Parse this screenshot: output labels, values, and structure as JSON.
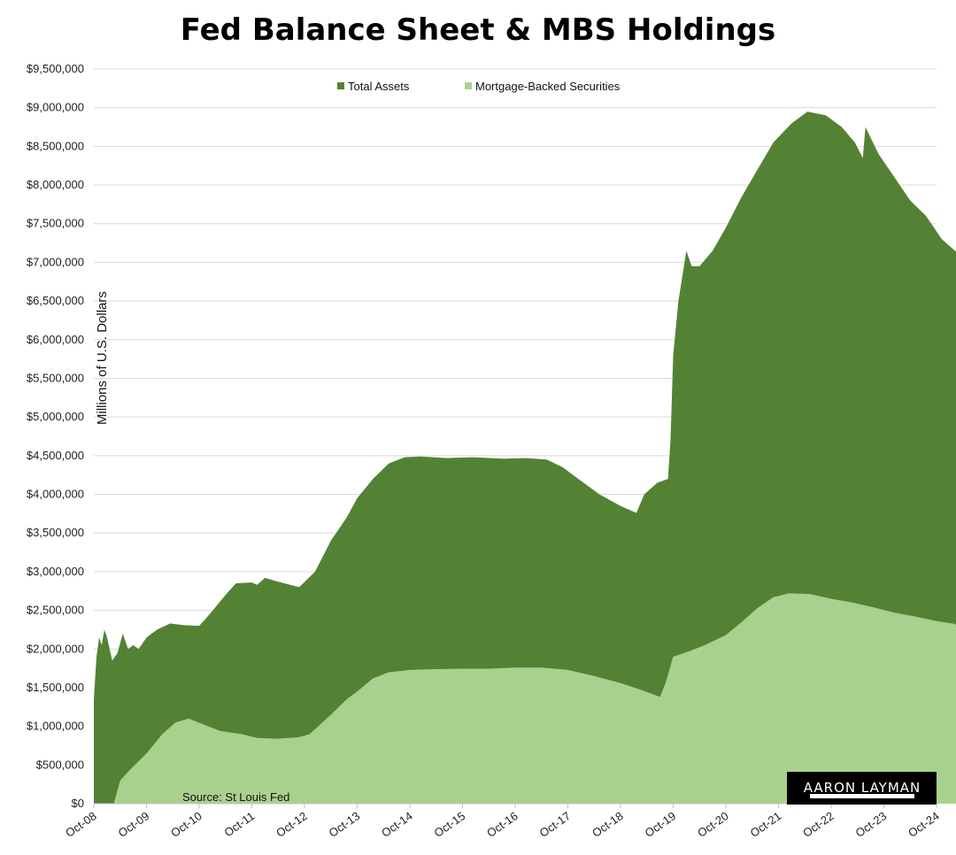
{
  "chart_data": {
    "type": "area",
    "title": "Fed Balance Sheet & MBS Holdings",
    "ylabel": "Millions of U.S. Dollars",
    "xlabel": "",
    "ylim": [
      0,
      9500000
    ],
    "ytick_step": 500000,
    "yticks": [
      "$0",
      "$500,000",
      "$1,000,000",
      "$1,500,000",
      "$2,000,000",
      "$2,500,000",
      "$3,000,000",
      "$3,500,000",
      "$4,000,000",
      "$4,500,000",
      "$5,000,000",
      "$5,500,000",
      "$6,000,000",
      "$6,500,000",
      "$7,000,000",
      "$7,500,000",
      "$8,000,000",
      "$8,500,000",
      "$9,000,000",
      "$9,500,000"
    ],
    "xticks": [
      "Oct-08",
      "Oct-09",
      "Oct-10",
      "Oct-11",
      "Oct-12",
      "Oct-13",
      "Oct-14",
      "Oct-15",
      "Oct-16",
      "Oct-17",
      "Oct-18",
      "Oct-19",
      "Oct-20",
      "Oct-21",
      "Oct-22",
      "Oct-23",
      "Oct-24"
    ],
    "grid": true,
    "legend_position": "top",
    "annotation": "Source: St Louis Fed",
    "watermark": "AARON LAYMAN",
    "x_unit": "years since Oct-08",
    "series": [
      {
        "name": "Total Assets",
        "color": "#548235",
        "points": [
          [
            0,
            1350000
          ],
          [
            0.05,
            1900000
          ],
          [
            0.1,
            2150000
          ],
          [
            0.15,
            2050000
          ],
          [
            0.2,
            2250000
          ],
          [
            0.25,
            2150000
          ],
          [
            0.35,
            1850000
          ],
          [
            0.45,
            1950000
          ],
          [
            0.55,
            2200000
          ],
          [
            0.65,
            2000000
          ],
          [
            0.75,
            2050000
          ],
          [
            0.85,
            2000000
          ],
          [
            1.0,
            2150000
          ],
          [
            1.2,
            2250000
          ],
          [
            1.45,
            2330000
          ],
          [
            1.7,
            2310000
          ],
          [
            2.0,
            2300000
          ],
          [
            2.2,
            2450000
          ],
          [
            2.5,
            2700000
          ],
          [
            2.7,
            2850000
          ],
          [
            3.0,
            2860000
          ],
          [
            3.1,
            2830000
          ],
          [
            3.25,
            2920000
          ],
          [
            3.5,
            2870000
          ],
          [
            3.9,
            2800000
          ],
          [
            4.2,
            3000000
          ],
          [
            4.5,
            3400000
          ],
          [
            4.8,
            3700000
          ],
          [
            5.0,
            3950000
          ],
          [
            5.3,
            4200000
          ],
          [
            5.6,
            4400000
          ],
          [
            5.9,
            4480000
          ],
          [
            6.2,
            4490000
          ],
          [
            6.7,
            4470000
          ],
          [
            7.2,
            4480000
          ],
          [
            7.8,
            4460000
          ],
          [
            8.2,
            4470000
          ],
          [
            8.6,
            4450000
          ],
          [
            8.9,
            4350000
          ],
          [
            9.2,
            4200000
          ],
          [
            9.6,
            4000000
          ],
          [
            10.0,
            3850000
          ],
          [
            10.3,
            3760000
          ],
          [
            10.45,
            4000000
          ],
          [
            10.7,
            4150000
          ],
          [
            10.9,
            4200000
          ],
          [
            10.95,
            4700000
          ],
          [
            11.0,
            5800000
          ],
          [
            11.1,
            6500000
          ],
          [
            11.25,
            7150000
          ],
          [
            11.35,
            6950000
          ],
          [
            11.5,
            6950000
          ],
          [
            11.75,
            7150000
          ],
          [
            12.0,
            7450000
          ],
          [
            12.3,
            7850000
          ],
          [
            12.6,
            8200000
          ],
          [
            12.9,
            8550000
          ],
          [
            13.25,
            8800000
          ],
          [
            13.55,
            8950000
          ],
          [
            13.9,
            8900000
          ],
          [
            14.2,
            8750000
          ],
          [
            14.45,
            8550000
          ],
          [
            14.6,
            8350000
          ],
          [
            14.65,
            8750000
          ],
          [
            14.9,
            8400000
          ],
          [
            15.2,
            8100000
          ],
          [
            15.5,
            7800000
          ],
          [
            15.8,
            7600000
          ],
          [
            16.1,
            7300000
          ],
          [
            16.35,
            7150000
          ],
          [
            16.5,
            7100000
          ]
        ]
      },
      {
        "name": "Mortgage-Backed Securities",
        "color": "#a9d18e",
        "points": [
          [
            0,
            0
          ],
          [
            0.38,
            0
          ],
          [
            0.5,
            300000
          ],
          [
            0.7,
            450000
          ],
          [
            1.0,
            650000
          ],
          [
            1.3,
            900000
          ],
          [
            1.55,
            1050000
          ],
          [
            1.8,
            1100000
          ],
          [
            2.1,
            1020000
          ],
          [
            2.4,
            940000
          ],
          [
            2.8,
            900000
          ],
          [
            3.1,
            850000
          ],
          [
            3.5,
            840000
          ],
          [
            3.9,
            860000
          ],
          [
            4.1,
            900000
          ],
          [
            4.5,
            1150000
          ],
          [
            4.8,
            1350000
          ],
          [
            5.0,
            1450000
          ],
          [
            5.3,
            1620000
          ],
          [
            5.6,
            1700000
          ],
          [
            6.0,
            1730000
          ],
          [
            6.5,
            1740000
          ],
          [
            7.0,
            1745000
          ],
          [
            7.5,
            1745000
          ],
          [
            8.0,
            1760000
          ],
          [
            8.5,
            1760000
          ],
          [
            9.0,
            1730000
          ],
          [
            9.5,
            1650000
          ],
          [
            10.0,
            1560000
          ],
          [
            10.4,
            1470000
          ],
          [
            10.75,
            1380000
          ],
          [
            10.85,
            1550000
          ],
          [
            11.0,
            1900000
          ],
          [
            11.3,
            1970000
          ],
          [
            11.6,
            2050000
          ],
          [
            12.0,
            2180000
          ],
          [
            12.3,
            2350000
          ],
          [
            12.6,
            2530000
          ],
          [
            12.9,
            2670000
          ],
          [
            13.2,
            2720000
          ],
          [
            13.6,
            2710000
          ],
          [
            14.0,
            2650000
          ],
          [
            14.4,
            2600000
          ],
          [
            14.8,
            2540000
          ],
          [
            15.2,
            2470000
          ],
          [
            15.6,
            2420000
          ],
          [
            16.0,
            2360000
          ],
          [
            16.3,
            2330000
          ],
          [
            16.5,
            2290000
          ]
        ]
      }
    ]
  }
}
